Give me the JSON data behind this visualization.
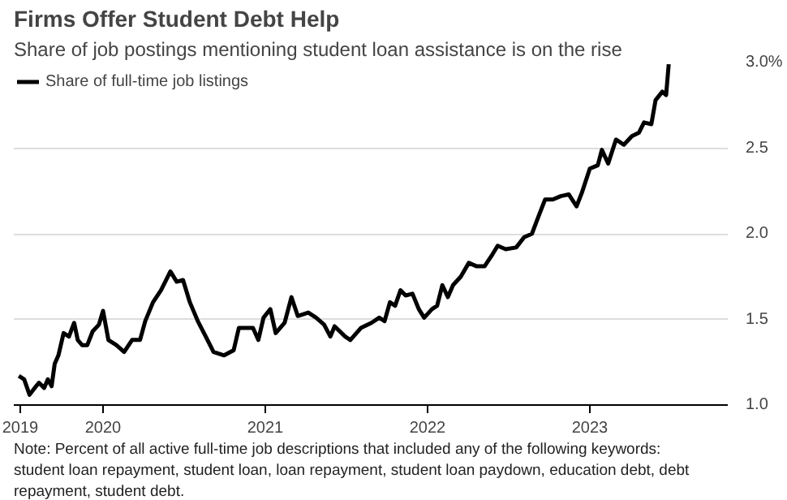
{
  "chart_data": {
    "type": "line",
    "title": "Firms Offer Student Debt Help",
    "subtitle": "Share of job postings mentioning student loan assistance is on the rise",
    "annotations": [
      "Note: Percent of all active full-time job descriptions that included any of the following keywords: student loan repayment, student loan, loan repayment, student loan paydown, education debt, debt repayment, student debt."
    ],
    "x": [
      2019.481,
      2019.514,
      2019.547,
      2019.579,
      2019.605,
      2019.637,
      2019.66,
      2019.683,
      2019.702,
      2019.725,
      2019.757,
      2019.79,
      2019.822,
      2019.844,
      2019.871,
      2019.903,
      2019.936,
      2019.975,
      2020.0,
      2020.033,
      2020.082,
      2020.13,
      2020.179,
      2020.228,
      2020.26,
      2020.308,
      2020.357,
      2020.389,
      2020.415,
      2020.454,
      2020.493,
      2020.535,
      2020.584,
      2020.633,
      2020.681,
      2020.746,
      2020.805,
      2020.837,
      2020.875,
      2020.924,
      2020.957,
      2020.989,
      2021.031,
      2021.064,
      2021.119,
      2021.161,
      2021.2,
      2021.265,
      2021.313,
      2021.362,
      2021.401,
      2021.427,
      2021.492,
      2021.524,
      2021.589,
      2021.654,
      2021.702,
      2021.735,
      2021.768,
      2021.8,
      2021.833,
      2021.865,
      2021.907,
      2021.946,
      2021.979,
      2022.027,
      2022.059,
      2022.091,
      2022.125,
      2022.157,
      2022.205,
      2022.254,
      2022.303,
      2022.351,
      2022.4,
      2022.432,
      2022.481,
      2022.546,
      2022.595,
      2022.643,
      2022.675,
      2022.724,
      2022.772,
      2022.821,
      2022.87,
      2022.918,
      2022.951,
      2023.0,
      2023.049,
      2023.074,
      2023.113,
      2023.161,
      2023.21,
      2023.259,
      2023.302,
      2023.334,
      2023.379,
      2023.405,
      2023.447,
      2023.47,
      2023.486
    ],
    "series": [
      {
        "name": "Share of full-time job listings",
        "color": "#000000",
        "values": [
          1.17,
          1.15,
          1.06,
          1.1,
          1.13,
          1.1,
          1.15,
          1.11,
          1.24,
          1.29,
          1.42,
          1.4,
          1.48,
          1.38,
          1.35,
          1.35,
          1.43,
          1.47,
          1.55,
          1.38,
          1.35,
          1.31,
          1.38,
          1.38,
          1.49,
          1.6,
          1.67,
          1.73,
          1.78,
          1.72,
          1.73,
          1.6,
          1.49,
          1.4,
          1.31,
          1.29,
          1.32,
          1.45,
          1.45,
          1.45,
          1.38,
          1.51,
          1.56,
          1.42,
          1.48,
          1.63,
          1.52,
          1.54,
          1.51,
          1.47,
          1.4,
          1.46,
          1.4,
          1.38,
          1.45,
          1.48,
          1.51,
          1.49,
          1.6,
          1.58,
          1.67,
          1.64,
          1.65,
          1.56,
          1.51,
          1.56,
          1.58,
          1.7,
          1.63,
          1.7,
          1.75,
          1.83,
          1.81,
          1.81,
          1.88,
          1.93,
          1.91,
          1.92,
          1.98,
          2.0,
          2.08,
          2.2,
          2.2,
          2.22,
          2.23,
          2.16,
          2.24,
          2.38,
          2.4,
          2.49,
          2.41,
          2.55,
          2.52,
          2.57,
          2.59,
          2.65,
          2.64,
          2.78,
          2.83,
          2.81,
          2.99
        ]
      }
    ],
    "xlim": [
      2019.45,
      2023.85
    ],
    "xticks": [
      {
        "value": 2019.49,
        "label": "2019"
      },
      2020,
      2021,
      2022,
      2023
    ],
    "ylim": [
      1.0,
      3.0
    ],
    "yticks": [
      {
        "value": 1.0,
        "label": "1.0"
      },
      1.5,
      {
        "value": 2.0,
        "label": "2.0"
      },
      2.5,
      {
        "value": 3.0,
        "label": "3.0%"
      }
    ],
    "grid": "y",
    "legend": "top left",
    "line_style": "solid",
    "marker": "none"
  }
}
